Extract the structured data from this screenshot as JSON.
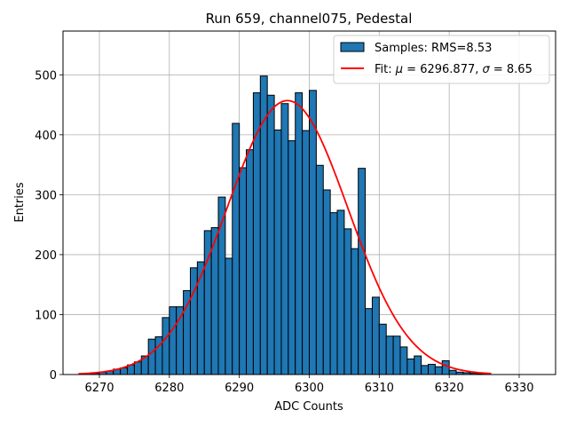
{
  "chart_data": {
    "type": "bar",
    "title": "Run 659, channel075, Pedestal",
    "xlabel": "ADC Counts",
    "ylabel": "Entries",
    "xlim": [
      6264.8,
      6335.2
    ],
    "ylim": [
      0,
      573
    ],
    "xticks": [
      6270,
      6280,
      6290,
      6300,
      6310,
      6320,
      6330
    ],
    "yticks": [
      0,
      100,
      200,
      300,
      400,
      500
    ],
    "grid": true,
    "legend_position": "top-right",
    "bar_color": "#1f77b4",
    "fit_color": "#ff0000",
    "histogram": {
      "name": "Samples: RMS=8.53",
      "bin_start": 6268,
      "bin_width": 1,
      "counts": [
        1,
        2,
        4,
        6,
        9,
        11,
        16,
        21,
        31,
        59,
        63,
        95,
        113,
        113,
        140,
        178,
        188,
        240,
        245,
        296,
        194,
        419,
        345,
        375,
        470,
        498,
        466,
        408,
        452,
        390,
        470,
        407,
        474,
        349,
        308,
        270,
        274,
        243,
        210,
        344,
        110,
        129,
        84,
        64,
        64,
        46,
        26,
        31,
        15,
        17,
        13,
        23,
        7,
        4,
        3,
        2,
        1
      ]
    },
    "fit": {
      "name": "Fit: μ = 6296.877, σ = 8.65",
      "label_prefix": "Fit: ",
      "label_mu": "μ",
      "label_mid": " = 6296.877, ",
      "label_sigma": "σ",
      "label_suffix": " = 8.65",
      "mu": 6296.877,
      "sigma": 8.65,
      "amplitude": 457,
      "x_range": [
        6267,
        6326
      ]
    }
  }
}
